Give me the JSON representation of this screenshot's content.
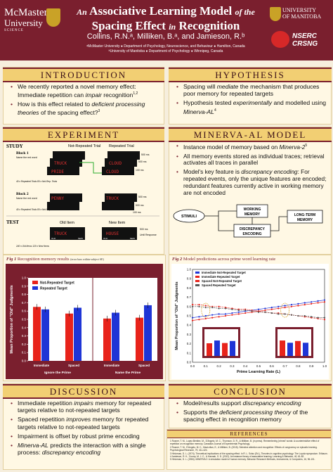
{
  "header": {
    "logo_left": {
      "line1": "McMaster",
      "line2": "University",
      "line3": "SCIENCE"
    },
    "title_part1": "An",
    "title_part2": "Associative Learning Model",
    "title_part3": "of the",
    "title_part4": "Spacing Effect",
    "title_part5": "in",
    "title_part6": "Recognition",
    "authors": "Collins, R.N.ᵃ, Milliken, B.ᵃ, and Jamieson, R.ᵇ",
    "affil1": "ᵃMcMaster University  ● Department of Psychology, Neuroscience, and Behaviour  ● Hamilton, Canada",
    "affil2": "ᵇUniversity of Manitoba  ● Department of Psychology  ● Winnipeg, Canada",
    "logo_right": {
      "line1": "UNIVERSITY",
      "line2": "OF MANITOBA"
    },
    "nserc": {
      "line1": "NSERC",
      "line2": "CRSNG"
    }
  },
  "introduction": {
    "heading": "INTRODUCTION",
    "bullets": [
      "We recently reported a novel memory effect: Immediate repetition can impair recognition",
      "How is this effect related to deficient processing theories of the spacing effect?"
    ],
    "refs": [
      "1,2",
      "3"
    ],
    "emph": [
      "impair",
      "deficient processing theories"
    ]
  },
  "hypothesis": {
    "heading": "HYPOTHESIS",
    "bullets": [
      "Spacing will mediate the mechanism that produces poor memory for repeated targets",
      "Hypothesis tested experimentally and modelled using Minerva-AL"
    ],
    "ref": "4"
  },
  "experiment": {
    "heading": "EXPERIMENT",
    "study_label": "STUDY",
    "col_headers": [
      "Not-Repeated Trial",
      "Repeated Trial"
    ],
    "block1": {
      "label": "Block 1",
      "sub": "Name the red word",
      "note": "40 x Repeated Trials\n80 x Not-Rep. Trials"
    },
    "block2": {
      "label": "Block 2",
      "sub": "Name the red word",
      "note": "40 x Repeated Trials\n80 x Not-Rep. Trials"
    },
    "timings": [
      "500 ms",
      "500 ms",
      "100 ms",
      "500 ms",
      "500 ms",
      "100 ms"
    ],
    "words_block1": [
      "TRUCK",
      "PRIDE",
      "CLOUD",
      "CLOUD"
    ],
    "words_block2": [
      "PENNY",
      "TRUCK"
    ],
    "test_label": "TEST",
    "test_headers": [
      "Old Item",
      "New Item"
    ],
    "test_words": [
      "TRUCK",
      "HOUSE"
    ],
    "test_note": "240 x Old Items\n120 x New Items",
    "test_key": [
      "OLD",
      "NEW"
    ],
    "test_timing": [
      "500 ms",
      "Until Response"
    ]
  },
  "minerva": {
    "heading": "MINERVA-AL MODEL",
    "bullets": [
      "Instance model of memory based on Minerva-2",
      "All memory events stored as individual traces; retrieval activates all traces in parallel",
      "Model's key feature is discrepancy encoding: For repeated events, only the unique features are encoded; redundant features currently active in working memory are not encoded"
    ],
    "ref": "5",
    "diagram": {
      "stimuli": "STIMULI",
      "working": "WORKING\nMEMORY",
      "discrepancy": "DISCREPANCY\nENCODING",
      "ltm": "LONG-TERM\nMEMORY"
    }
  },
  "fig1": {
    "caption_label": "Fig 1",
    "caption": "Recognition memory results",
    "caption_note": "(error bars within-subject SE)",
    "legend": [
      "Not-Repeated Target",
      "Repeated Target"
    ],
    "ylabel": "Mean Proportion of \"Old\" Judgments",
    "group_labels": [
      "Ignore the Prime",
      "Name the Prime"
    ],
    "tick_y": [
      "0.0",
      "0.1",
      "0.2",
      "0.3",
      "0.4",
      "0.5",
      "0.6",
      "0.7",
      "0.8",
      "0.9",
      "1.0"
    ]
  },
  "fig2": {
    "caption_label": "Fig 2",
    "caption": "Model predictions across prime word learning rate",
    "legend": [
      "Immediate Not-Repeated Target",
      "Immediate Repeated Target",
      "Spaced Not-Repeated Target",
      "Spaced Repeated Target"
    ],
    "ylabel": "Mean Proportion of \"Old\" Judgments",
    "xlabel": "Prime Learning Rate (L)",
    "tick_y": [
      "0.0",
      "0.1",
      "0.2",
      "0.3",
      "0.4",
      "0.5",
      "0.6",
      "0.7",
      "0.8",
      "0.9",
      "1.0"
    ],
    "tick_x": [
      "0.0",
      "0.1",
      "0.2",
      "0.3",
      "0.4",
      "0.5",
      "0.6",
      "0.7",
      "0.8",
      "0.9",
      "1.0"
    ]
  },
  "chart_data": [
    {
      "type": "bar",
      "title": "Recognition memory results",
      "ylabel": "Mean Proportion of \"Old\" Judgments",
      "ylim": [
        0,
        1
      ],
      "categories": [
        "Immediate",
        "Spaced",
        "Immediate",
        "Spaced"
      ],
      "groups": [
        "Ignore the Prime",
        "Ignore the Prime",
        "Name the Prime",
        "Name the Prime"
      ],
      "series": [
        {
          "name": "Not-Repeated Target",
          "color": "#e8231b",
          "values": [
            0.65,
            0.57,
            0.51,
            0.52
          ]
        },
        {
          "name": "Repeated Target",
          "color": "#1f35d6",
          "values": [
            0.62,
            0.64,
            0.58,
            0.67
          ]
        }
      ]
    },
    {
      "type": "line",
      "title": "Model predictions across prime word learning rate",
      "xlabel": "Prime Learning Rate (L)",
      "ylabel": "Mean Proportion of \"Old\" Judgments",
      "xlim": [
        0,
        1
      ],
      "ylim": [
        0,
        1
      ],
      "x": [
        0.0,
        0.05,
        0.1,
        0.15,
        0.2,
        0.25,
        0.3,
        0.35,
        0.4,
        0.45,
        0.5,
        0.55,
        0.6,
        0.65,
        0.7,
        0.75,
        0.8,
        0.85,
        0.9,
        0.95,
        1.0
      ],
      "series": [
        {
          "name": "Immediate Not-Repeated Target",
          "color": "#1f35d6",
          "values": [
            0.48,
            0.49,
            0.5,
            0.51,
            0.52,
            0.52,
            0.53,
            0.54,
            0.55,
            0.56,
            0.57,
            0.58,
            0.59,
            0.6,
            0.61,
            0.62,
            0.63,
            0.64,
            0.65,
            0.66,
            0.67
          ]
        },
        {
          "name": "Immediate Repeated Target",
          "color": "#e8231b",
          "values": [
            0.62,
            0.62,
            0.61,
            0.6,
            0.6,
            0.59,
            0.58,
            0.57,
            0.57,
            0.56,
            0.55,
            0.54,
            0.53,
            0.53,
            0.52,
            0.51,
            0.5,
            0.49,
            0.48,
            0.47,
            0.46
          ]
        },
        {
          "name": "Spaced Not-Repeated Target",
          "color": "#e8231b",
          "values": [
            0.45,
            0.46,
            0.47,
            0.48,
            0.49,
            0.5,
            0.51,
            0.52,
            0.53,
            0.54,
            0.55,
            0.56,
            0.57,
            0.58,
            0.59,
            0.6,
            0.61,
            0.62,
            0.63,
            0.64,
            0.65
          ]
        },
        {
          "name": "Spaced Repeated Target",
          "color": "#555555",
          "values": [
            0.6,
            0.6,
            0.59,
            0.59,
            0.58,
            0.58,
            0.57,
            0.56,
            0.56,
            0.55,
            0.54,
            0.54,
            0.53,
            0.52,
            0.52,
            0.51,
            0.5,
            0.5,
            0.49,
            0.48,
            0.48
          ]
        }
      ],
      "insets": [
        {
          "x_at": 0.1,
          "values": [
            0.5,
            0.61,
            0.51,
            0.59
          ]
        },
        {
          "x_at": 0.7,
          "values": [
            0.61,
            0.52,
            0.59,
            0.52
          ]
        }
      ]
    }
  ],
  "discussion": {
    "heading": "DISCUSSION",
    "bullets": [
      "Immediate repetition impairs memory for repeated targets relative to not-repeated targets",
      "Spaced repetition improves memory for repeated targets relative to not-repeated targets",
      "Impairment is offset by robust prime encoding",
      "Minerva-AL predicts the interaction with a single process: discrepancy encoding"
    ]
  },
  "conclusion": {
    "heading": "CONCLUSION",
    "bullets": [
      "Model/results support discrepancy encoding",
      "Supports the deficient processing theory of the spacing effect in recognition memory"
    ]
  },
  "references": {
    "heading": "REFERENCES",
    "items": [
      "1 Rosner, T. M., Lopez-Benitez, M., D'Angelo, M. C., Thomson, D. R., & Milliken, B. (in press). Remembering 'primed' words: A counterintuitive effect of repetition on recognition memory. Canadian Journal of Experimental Psychology.",
      "2 Rosner, T. M., D'Angelo, M. C., MacLellan, E., & Milliken, B. (2015). Selective attention and recognition: Effects of congruency on episodic learning. Psychological Research, 79, 411-424.",
      "3 Hintzman, D. L. (1974). Theoretical implications of the spacing effect. In R. L. Solso (Ed.), Theories in cognitive psychology: The Loyola symposium. Erlbaum.",
      "4 Jamieson, R. K., Crump, M. J. C., & Hannah, S. D. (2012). An instance theory of associative learning. Learning & Behavior, 40, 61-82.",
      "5 Hintzman, D. L. (1984). MINERVA 2: A simulation model of human memory. Behavior Research Methods, Instruments, & Computers, 16, 96-101."
    ]
  }
}
